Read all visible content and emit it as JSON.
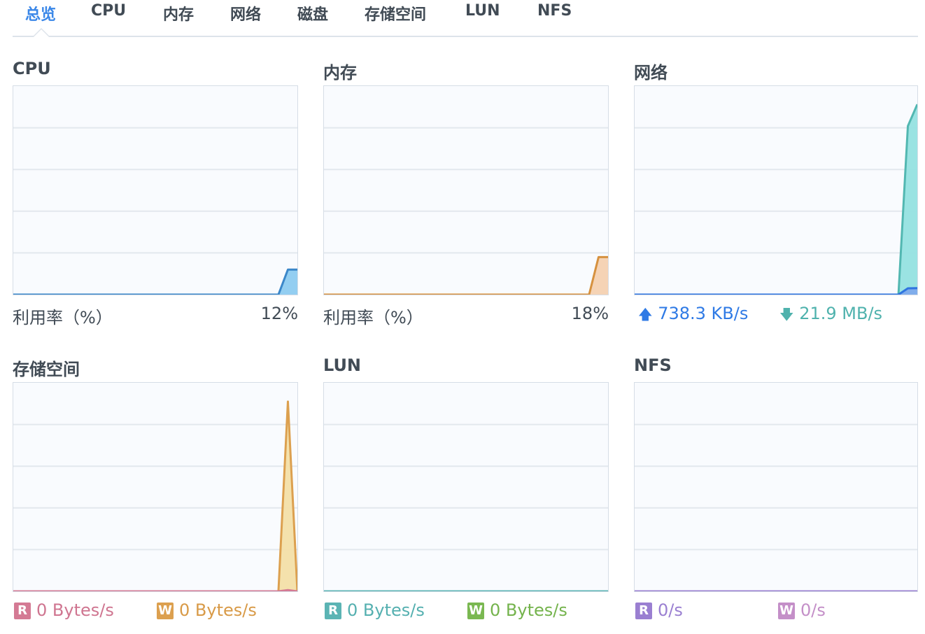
{
  "tabs": [
    {
      "label": "总览",
      "active": true
    },
    {
      "label": "CPU"
    },
    {
      "label": "内存"
    },
    {
      "label": "网络"
    },
    {
      "label": "磁盘"
    },
    {
      "label": "存储空间"
    },
    {
      "label": "LUN"
    },
    {
      "label": "NFS"
    }
  ],
  "panels": {
    "cpu": {
      "title": "CPU",
      "label": "利用率（%）",
      "value": "12%"
    },
    "memory": {
      "title": "内存",
      "label": "利用率（%）",
      "value": "18%"
    },
    "network": {
      "title": "网络",
      "upload": "738.3 KB/s",
      "download": "21.9 MB/s"
    },
    "storage": {
      "title": "存储空间",
      "read_badge": "R",
      "read": "0 Bytes/s",
      "write_badge": "W",
      "write": "0 Bytes/s"
    },
    "lun": {
      "title": "LUN",
      "read_badge": "R",
      "read": "0 Bytes/s",
      "write_badge": "W",
      "write": "0 Bytes/s"
    },
    "nfs": {
      "title": "NFS",
      "read_badge": "R",
      "read": "0/s",
      "write_badge": "W",
      "write": "0/s"
    }
  },
  "colors": {
    "accent": "#3a87e8",
    "grid": "#e3e8ee"
  },
  "chart_data": [
    {
      "id": "cpu",
      "type": "area",
      "ylim": [
        0,
        100
      ],
      "series": [
        {
          "values": [
            0,
            0,
            0,
            0,
            0,
            0,
            0,
            0,
            0,
            0,
            0,
            0,
            0,
            0,
            0,
            0,
            0,
            0,
            0,
            0,
            0,
            0,
            0,
            0,
            0,
            0,
            0,
            0,
            0,
            12,
            12
          ],
          "line": "#3b87c9",
          "fill": "#8dcbf0"
        }
      ]
    },
    {
      "id": "memory",
      "type": "area",
      "ylim": [
        0,
        100
      ],
      "series": [
        {
          "values": [
            0,
            0,
            0,
            0,
            0,
            0,
            0,
            0,
            0,
            0,
            0,
            0,
            0,
            0,
            0,
            0,
            0,
            0,
            0,
            0,
            0,
            0,
            0,
            0,
            0,
            0,
            0,
            0,
            0,
            18,
            18
          ],
          "line": "#d6913f",
          "fill": "#f4d1b1"
        }
      ]
    },
    {
      "id": "network",
      "type": "area",
      "ylim": [
        0,
        24
      ],
      "unit": "MB/s",
      "series": [
        {
          "values": [
            0,
            0,
            0,
            0,
            0,
            0,
            0,
            0,
            0,
            0,
            0,
            0,
            0,
            0,
            0,
            0,
            0,
            0,
            0,
            0,
            0,
            0,
            0,
            0,
            0,
            0,
            0,
            0,
            0,
            19.4,
            21.9
          ],
          "line": "#52b7b1",
          "fill": "#95e2e0"
        },
        {
          "values": [
            0,
            0,
            0,
            0,
            0,
            0,
            0,
            0,
            0,
            0,
            0,
            0,
            0,
            0,
            0,
            0,
            0,
            0,
            0,
            0,
            0,
            0,
            0,
            0,
            0,
            0,
            0,
            0,
            0,
            0.72,
            0.74
          ],
          "line": "#2f74e0",
          "fill": "#7eaaeb"
        }
      ]
    },
    {
      "id": "storage",
      "type": "area",
      "ylim": [
        0,
        100
      ],
      "series": [
        {
          "values": [
            0,
            0,
            0,
            0,
            0,
            0,
            0,
            0,
            0,
            0,
            0,
            0,
            0,
            0,
            0,
            0,
            0,
            0,
            0,
            0,
            0,
            0,
            0,
            0,
            0,
            0,
            0,
            0,
            0,
            91,
            0
          ],
          "line": "#dca04f",
          "fill": "#f3dfa8"
        },
        {
          "values": [
            0,
            0,
            0,
            0,
            0,
            0,
            0,
            0,
            0,
            0,
            0,
            0,
            0,
            0,
            0,
            0,
            0,
            0,
            0,
            0,
            0,
            0,
            0,
            0,
            0,
            0,
            0,
            0,
            0,
            0.6,
            0
          ],
          "line": "#d47a94",
          "fill": "#e9a9bb"
        }
      ]
    },
    {
      "id": "lun",
      "type": "area",
      "ylim": [
        0,
        100
      ],
      "series": [
        {
          "values": [
            0,
            0,
            0,
            0,
            0,
            0,
            0,
            0,
            0,
            0,
            0,
            0,
            0,
            0,
            0,
            0,
            0,
            0,
            0,
            0,
            0,
            0,
            0,
            0,
            0,
            0,
            0,
            0,
            0,
            0,
            0
          ],
          "line": "#5bb4b4",
          "fill": "#a9dcdc"
        }
      ]
    },
    {
      "id": "nfs",
      "type": "area",
      "ylim": [
        0,
        100
      ],
      "series": [
        {
          "values": [
            0,
            0,
            0,
            0,
            0,
            0,
            0,
            0,
            0,
            0,
            0,
            0,
            0,
            0,
            0,
            0,
            0,
            0,
            0,
            0,
            0,
            0,
            0,
            0,
            0,
            0,
            0,
            0,
            0,
            0,
            0
          ],
          "line": "#9a7fd1",
          "fill": "#c8b8ea"
        }
      ]
    }
  ]
}
